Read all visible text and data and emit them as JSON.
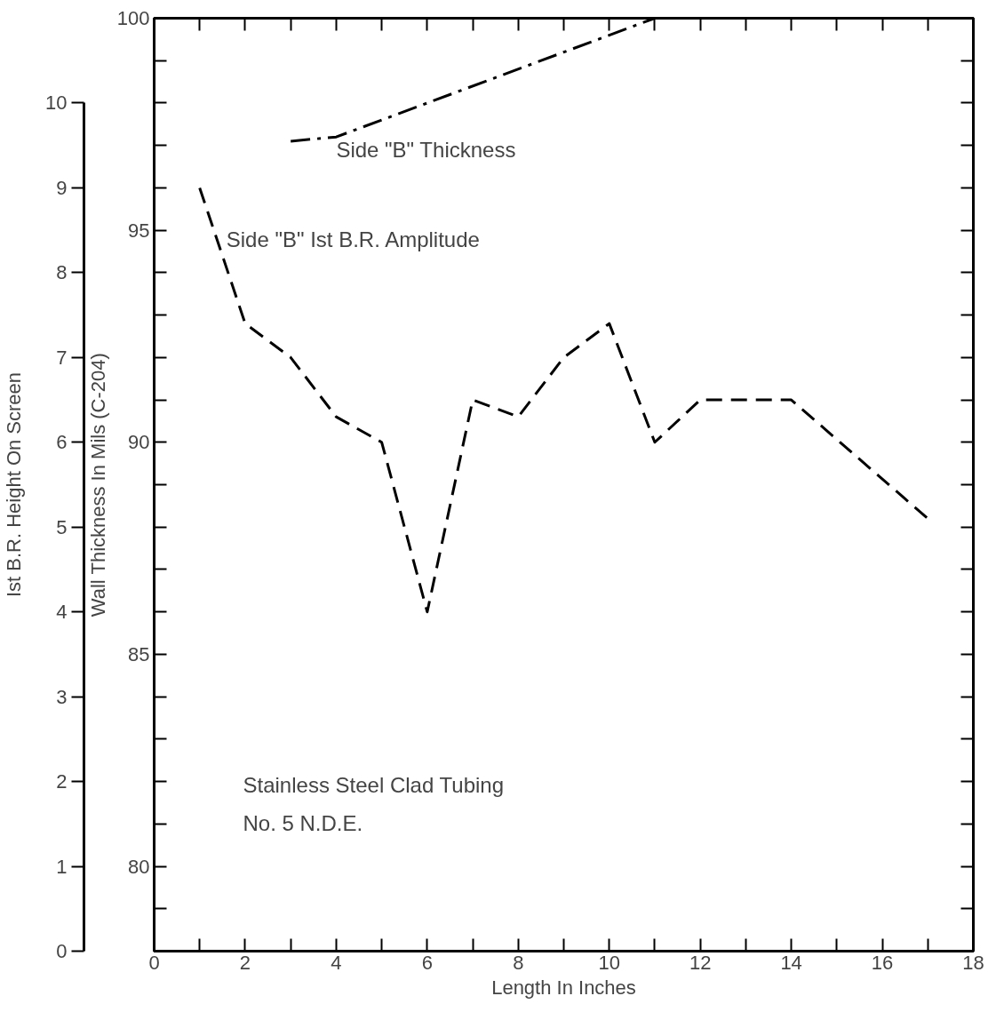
{
  "chart_data": {
    "type": "line",
    "xlabel": "Length In Inches",
    "ylabel": "Wall Thickness In Mils (C-204)",
    "y2label": "Ist B.R. Height On Screen",
    "xlim": [
      0,
      18
    ],
    "xticks": [
      0,
      {
        "value": 1,
        "label": null
      },
      2,
      {
        "value": 3,
        "label": null
      },
      4,
      {
        "value": 5,
        "label": null
      },
      6,
      {
        "value": 7,
        "label": null
      },
      8,
      {
        "value": 9,
        "label": null
      },
      10,
      {
        "value": 11,
        "label": null
      },
      12,
      {
        "value": 13,
        "label": null
      },
      14,
      {
        "value": 15,
        "label": null
      },
      16,
      {
        "value": 17,
        "label": null
      },
      18
    ],
    "ylim": [
      78,
      100
    ],
    "yticks": [
      {
        "value": 78,
        "label": null
      },
      {
        "value": 79,
        "label": null
      },
      80,
      {
        "value": 81,
        "label": null
      },
      {
        "value": 82,
        "label": null
      },
      {
        "value": 83,
        "label": null
      },
      {
        "value": 84,
        "label": null
      },
      85,
      {
        "value": 86,
        "label": null
      },
      {
        "value": 87,
        "label": null
      },
      {
        "value": 88,
        "label": null
      },
      {
        "value": 89,
        "label": null
      },
      90,
      {
        "value": 91,
        "label": null
      },
      {
        "value": 92,
        "label": null
      },
      {
        "value": 93,
        "label": null
      },
      {
        "value": 94,
        "label": null
      },
      95,
      {
        "value": 96,
        "label": null
      },
      {
        "value": 97,
        "label": null
      },
      {
        "value": 98,
        "label": null
      },
      {
        "value": 99,
        "label": null
      },
      100
    ],
    "y2lim": [
      0,
      11
    ],
    "y2ticks": [
      0,
      1,
      2,
      3,
      4,
      5,
      6,
      7,
      8,
      9,
      10
    ],
    "series": [
      {
        "name": "Side \"B\" Thickness",
        "color": "#000000",
        "line_style": "dashdot",
        "x": [
          3,
          4,
          11,
          12
        ],
        "values": [
          97.1,
          97.2,
          100,
          100
        ]
      },
      {
        "name": "Side \"B\" Ist B.R. Amplitude",
        "color": "#000000",
        "line_style": "dashed",
        "axis": "y2",
        "x": [
          1,
          2,
          3,
          4,
          5,
          6,
          7,
          8,
          9,
          10,
          11,
          12,
          14,
          17
        ],
        "values": [
          9.0,
          7.4,
          7.0,
          6.3,
          6.0,
          4.0,
          6.5,
          6.3,
          7.0,
          7.4,
          6.0,
          6.5,
          6.5,
          5.1
        ]
      }
    ],
    "annotations": [
      "Stainless Steel Clad Tubing\nNo. 5 N.D.E."
    ],
    "grid": false,
    "marker": "none"
  }
}
